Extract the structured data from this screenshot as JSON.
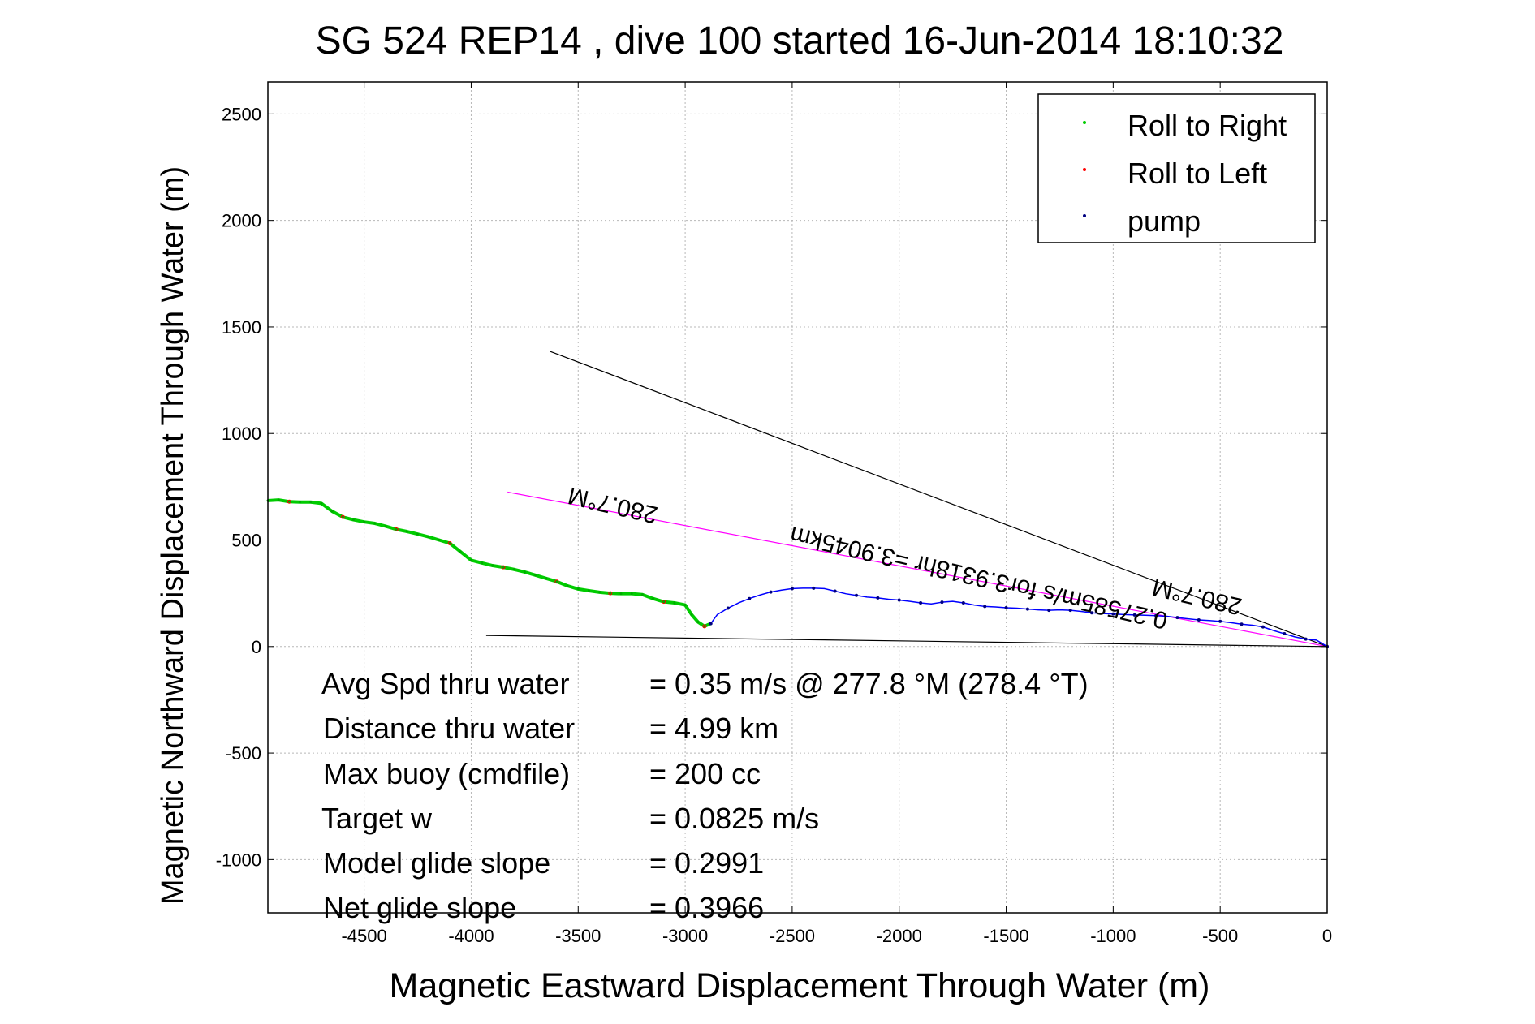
{
  "chart_data": {
    "type": "line",
    "title": "SG 524   REP14  , dive 100 started 16-Jun-2014 18:10:32",
    "xlabel": "Magnetic Eastward Displacement Through Water (m)",
    "ylabel": "Magnetic Northward Displacement Through Water (m)",
    "xlim": [
      -4950,
      0
    ],
    "ylim": [
      -1250,
      2650
    ],
    "xticks": [
      -4500,
      -4000,
      -3500,
      -3000,
      -2500,
      -2000,
      -1500,
      -1000,
      -500,
      0
    ],
    "yticks": [
      -1000,
      -500,
      0,
      500,
      1000,
      1500,
      2000,
      2500
    ],
    "grid": true,
    "legend_position": "top-right",
    "legend": [
      {
        "label": "Roll to Right",
        "color": "#00cc00"
      },
      {
        "label": "Roll to Left",
        "color": "#ff0000"
      },
      {
        "label": "pump",
        "color": "#000080"
      }
    ],
    "series": [
      {
        "name": "Roll to Right",
        "color": "#00cc00",
        "x": [
          -4950,
          -4900,
          -4850,
          -4800,
          -4750,
          -4700,
          -4650,
          -4600,
          -4550,
          -4500,
          -4450,
          -4400,
          -4350,
          -4300,
          -4250,
          -4200,
          -4150,
          -4100,
          -4050,
          -4000,
          -3950,
          -3900,
          -3850,
          -3800,
          -3750,
          -3700,
          -3650,
          -3600,
          -3550,
          -3500,
          -3450,
          -3400,
          -3350,
          -3300,
          -3250,
          -3200,
          -3150,
          -3100,
          -3050,
          -3000,
          -2970,
          -2940,
          -2910,
          -2880
        ],
        "y": [
          685,
          688,
          680,
          678,
          678,
          672,
          635,
          608,
          595,
          585,
          578,
          565,
          550,
          540,
          528,
          515,
          500,
          485,
          445,
          405,
          392,
          380,
          372,
          362,
          350,
          335,
          320,
          305,
          285,
          270,
          262,
          255,
          250,
          248,
          248,
          244,
          225,
          210,
          205,
          195,
          150,
          115,
          95,
          108
        ]
      },
      {
        "name": "pump",
        "color": "#0000ff",
        "x": [
          -2880,
          -2850,
          -2800,
          -2750,
          -2700,
          -2650,
          -2600,
          -2550,
          -2500,
          -2450,
          -2400,
          -2350,
          -2300,
          -2250,
          -2200,
          -2150,
          -2100,
          -2050,
          -2000,
          -1950,
          -1900,
          -1850,
          -1800,
          -1750,
          -1700,
          -1650,
          -1600,
          -1550,
          -1500,
          -1450,
          -1400,
          -1350,
          -1300,
          -1250,
          -1200,
          -1150,
          -1100,
          -1050,
          -1000,
          -950,
          -900,
          -850,
          -800,
          -750,
          -700,
          -650,
          -600,
          -550,
          -500,
          -450,
          -400,
          -350,
          -300,
          -250,
          -200,
          -150,
          -100,
          -50,
          0
        ],
        "y": [
          108,
          150,
          180,
          205,
          225,
          242,
          256,
          265,
          272,
          274,
          274,
          272,
          260,
          248,
          240,
          232,
          228,
          222,
          218,
          212,
          205,
          200,
          208,
          212,
          205,
          195,
          188,
          186,
          182,
          180,
          176,
          172,
          170,
          172,
          170,
          165,
          158,
          155,
          153,
          150,
          148,
          147,
          145,
          142,
          136,
          130,
          125,
          122,
          118,
          112,
          105,
          100,
          92,
          75,
          60,
          45,
          35,
          30,
          0
        ]
      }
    ],
    "annotations": [
      {
        "text": "280.7°M",
        "label_x": -3330,
        "label_y": 700,
        "angle": 13
      },
      {
        "text": "280.7°M",
        "label_x": -600,
        "label_y": 270,
        "angle": 13
      },
      {
        "text": "0.27585m/s for3.9318hr =3.9045km",
        "label_x": -1620,
        "label_y": 360,
        "angle": 13
      }
    ],
    "reference_lines": [
      {
        "name": "heading line",
        "x": [
          -3830,
          0
        ],
        "y": [
          725,
          0
        ],
        "color": "#ff00ff"
      },
      {
        "name": "target line",
        "x": [
          -3630,
          0
        ],
        "y": [
          1385,
          0
        ],
        "color": "#000000"
      },
      {
        "name": "baseline",
        "x": [
          -3930,
          0
        ],
        "y": [
          52,
          0
        ],
        "color": "#000000"
      }
    ]
  },
  "stats": [
    {
      "label": "Avg Spd thru water",
      "value": "=  0.35 m/s @ 277.8 °M (278.4 °T)"
    },
    {
      "label": "Distance thru water",
      "value": "=  4.99 km"
    },
    {
      "label": "Max buoy (cmdfile)",
      "value": "= 200 cc"
    },
    {
      "label": "Target w",
      "value": "= 0.0825 m/s"
    },
    {
      "label": "Model glide slope",
      "value": "= 0.2991"
    },
    {
      "label": "Net glide slope",
      "value": "= 0.3966"
    }
  ]
}
